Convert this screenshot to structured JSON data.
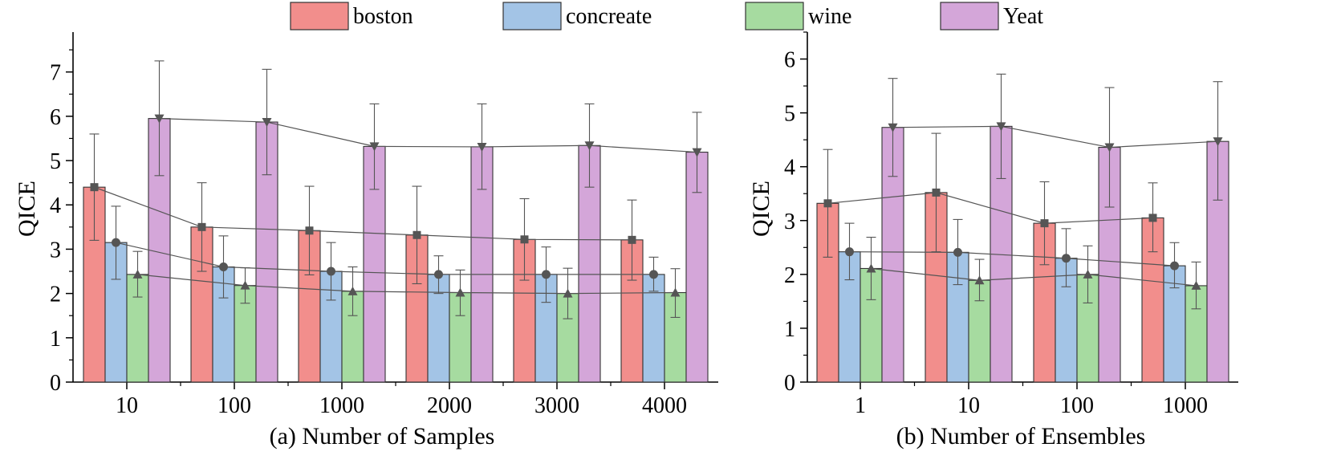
{
  "legend": [
    {
      "name": "boston",
      "color": "#f28e8c"
    },
    {
      "name": "concreate",
      "color": "#a3c4e6"
    },
    {
      "name": "wine",
      "color": "#a6dba0"
    },
    {
      "name": "Yeat",
      "color": "#d4a6d9"
    }
  ],
  "chart_data": [
    {
      "type": "bar",
      "xlabel": "(a) Number of Samples",
      "ylabel": "QICE",
      "ylim": [
        0,
        7.9
      ],
      "yticks": [
        0,
        1,
        2,
        3,
        4,
        5,
        6,
        7
      ],
      "categories": [
        "10",
        "100",
        "1000",
        "2000",
        "3000",
        "4000"
      ],
      "series": [
        {
          "name": "boston",
          "color": "#f28e8c",
          "marker": "square",
          "values": [
            4.4,
            3.5,
            3.42,
            3.32,
            3.22,
            3.21
          ],
          "error_low": [
            3.2,
            2.5,
            2.42,
            2.22,
            2.3,
            2.3
          ],
          "error_high": [
            5.6,
            4.5,
            4.42,
            4.42,
            4.14,
            4.11
          ]
        },
        {
          "name": "concreate",
          "color": "#a3c4e6",
          "marker": "circle",
          "values": [
            3.15,
            2.6,
            2.5,
            2.43,
            2.43,
            2.43
          ],
          "error_low": [
            2.32,
            1.9,
            1.85,
            2.0,
            1.8,
            2.05
          ],
          "error_high": [
            3.97,
            3.3,
            3.15,
            2.85,
            3.05,
            2.82
          ]
        },
        {
          "name": "wine",
          "color": "#a6dba0",
          "marker": "triangle-up",
          "values": [
            2.43,
            2.18,
            2.05,
            2.02,
            2.0,
            2.02
          ],
          "error_low": [
            1.92,
            1.78,
            1.5,
            1.5,
            1.43,
            1.46
          ],
          "error_high": [
            2.95,
            2.58,
            2.6,
            2.53,
            2.57,
            2.56
          ]
        },
        {
          "name": "Yeat",
          "color": "#d4a6d9",
          "marker": "triangle-down",
          "values": [
            5.95,
            5.87,
            5.32,
            5.31,
            5.34,
            5.19
          ],
          "error_low": [
            4.66,
            4.68,
            4.35,
            4.35,
            4.4,
            4.28
          ],
          "error_high": [
            7.25,
            7.06,
            6.28,
            6.28,
            6.28,
            6.09
          ]
        }
      ]
    },
    {
      "type": "bar",
      "xlabel": "(b) Number of Ensembles",
      "ylabel": "QICE",
      "ylim": [
        0,
        6.5
      ],
      "yticks": [
        0,
        1,
        2,
        3,
        4,
        5,
        6
      ],
      "categories": [
        "1",
        "10",
        "100",
        "1000"
      ],
      "series": [
        {
          "name": "boston",
          "color": "#f28e8c",
          "marker": "square",
          "values": [
            3.32,
            3.52,
            2.95,
            3.05
          ],
          "error_low": [
            2.32,
            2.42,
            2.18,
            2.42
          ],
          "error_high": [
            4.32,
            4.62,
            3.72,
            3.7
          ]
        },
        {
          "name": "concreate",
          "color": "#a3c4e6",
          "marker": "circle",
          "values": [
            2.42,
            2.41,
            2.3,
            2.16
          ],
          "error_low": [
            1.9,
            1.81,
            1.77,
            1.75
          ],
          "error_high": [
            2.95,
            3.02,
            2.85,
            2.59
          ]
        },
        {
          "name": "wine",
          "color": "#a6dba0",
          "marker": "triangle-up",
          "values": [
            2.11,
            1.89,
            2.0,
            1.79
          ],
          "error_low": [
            1.53,
            1.51,
            1.47,
            1.36
          ],
          "error_high": [
            2.69,
            2.28,
            2.53,
            2.23
          ]
        },
        {
          "name": "Yeat",
          "color": "#d4a6d9",
          "marker": "triangle-down",
          "values": [
            4.73,
            4.75,
            4.36,
            4.47
          ],
          "error_low": [
            3.82,
            3.78,
            3.25,
            3.38
          ],
          "error_high": [
            5.64,
            5.72,
            5.47,
            5.58
          ]
        }
      ]
    }
  ]
}
